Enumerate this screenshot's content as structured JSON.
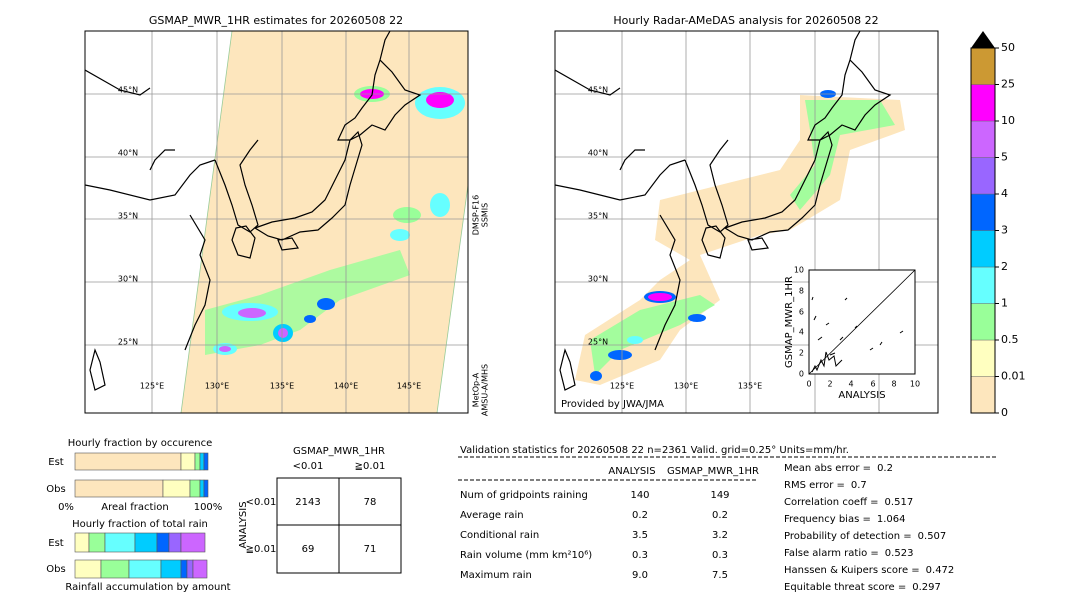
{
  "left_map": {
    "title": "GSMAP_MWR_1HR estimates for 20260508 22",
    "lat_labels": [
      "45°N",
      "40°N",
      "35°N",
      "30°N",
      "25°N"
    ],
    "lon_labels": [
      "125°E",
      "130°E",
      "135°E",
      "140°E",
      "145°E"
    ],
    "swath_labels": [
      "DMSP-F16",
      "SSMIS",
      "MetOp-A",
      "AMSU-A/MHS"
    ]
  },
  "right_map": {
    "title": "Hourly Radar-AMeDAS analysis for 20260508 22",
    "lat_labels": [
      "45°N",
      "40°N",
      "35°N",
      "30°N",
      "25°N"
    ],
    "lon_labels": [
      "125°E",
      "130°E",
      "135°E"
    ],
    "credit": "Provided by JWA/JMA",
    "inset": {
      "xlabel": "ANALYSIS",
      "ylabel": "GSMAP_MWR_1HR",
      "ticks": [
        "0",
        "2",
        "4",
        "6",
        "8",
        "10"
      ]
    }
  },
  "colorbar": {
    "labels": [
      "0",
      "0.01",
      "0.5",
      "1",
      "2",
      "3",
      "4",
      "5",
      "10",
      "25",
      "50"
    ],
    "colors": [
      "#fde6bd",
      "#ffffc0",
      "#99ff99",
      "#66ffff",
      "#00ccff",
      "#0066ff",
      "#9966ff",
      "#cc66ff",
      "#ff00ff",
      "#cc9933"
    ]
  },
  "fractions": {
    "occurrence_title": "Hourly fraction by occurence",
    "est": "Est",
    "obs": "Obs",
    "axis_min": "0%",
    "axis_label": "Areal fraction",
    "axis_max": "100%",
    "rain_title": "Hourly fraction of total rain",
    "est2": "Est",
    "obs2": "Obs",
    "rain_label": "Rainfall accumulation by amount"
  },
  "contingency": {
    "header": "GSMAP_MWR_1HR",
    "cols": [
      "<0.01",
      "≧0.01"
    ],
    "side": "ANALYSIS",
    "rows": [
      "<0.01",
      "≧0.01"
    ],
    "cells": [
      [
        "2143",
        "78"
      ],
      [
        "69",
        "71"
      ]
    ]
  },
  "validation": {
    "title": "Validation statistics for 20260508 22  n=2361 Valid. grid=0.25° Units=mm/hr.",
    "columns": [
      "ANALYSIS",
      "GSMAP_MWR_1HR"
    ],
    "rows": [
      {
        "label": "Num of gridpoints raining",
        "values": [
          "140",
          "149"
        ]
      },
      {
        "label": "Average rain",
        "values": [
          "0.2",
          "0.2"
        ]
      },
      {
        "label": "Conditional rain",
        "values": [
          "3.5",
          "3.2"
        ]
      },
      {
        "label": "Rain volume (mm km²10⁶)",
        "values": [
          "0.3",
          "0.3"
        ]
      },
      {
        "label": "Maximum rain",
        "values": [
          "9.0",
          "7.5"
        ]
      }
    ],
    "scores": [
      {
        "label": "Mean abs error =",
        "value": "0.2"
      },
      {
        "label": "RMS error =",
        "value": "0.7"
      },
      {
        "label": "Correlation coeff =",
        "value": "0.517"
      },
      {
        "label": "Frequency bias =",
        "value": "1.064"
      },
      {
        "label": "Probability of detection =",
        "value": "0.507"
      },
      {
        "label": "False alarm ratio =",
        "value": "0.523"
      },
      {
        "label": "Hanssen & Kuipers score =",
        "value": "0.472"
      },
      {
        "label": "Equitable threat score =",
        "value": "0.297"
      }
    ]
  }
}
